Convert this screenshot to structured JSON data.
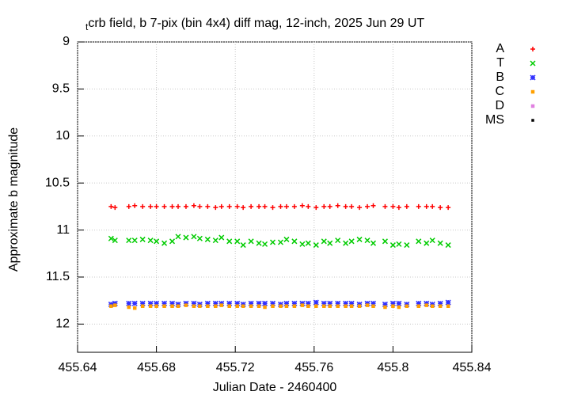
{
  "chart_data": {
    "type": "scatter",
    "title_sub": "t",
    "title": "crb field, b 7-pix (bin 4x4) diff mag, 12-inch, 2025 Jun 29 UT",
    "xlabel": "Julian Date - 2460400",
    "ylabel": "Approximate b magnitude",
    "xlim": [
      455.64,
      455.84
    ],
    "xticks": [
      455.64,
      455.68,
      455.72,
      455.76,
      455.8,
      455.84
    ],
    "ylim": [
      12.3,
      9
    ],
    "yticks": [
      9,
      9.5,
      10,
      10.5,
      11,
      11.5,
      12
    ],
    "grid": true,
    "legend": "right",
    "x": [
      455.657,
      455.659,
      455.666,
      455.669,
      455.673,
      455.677,
      455.68,
      455.684,
      455.688,
      455.691,
      455.695,
      455.699,
      455.702,
      455.706,
      455.71,
      455.713,
      455.717,
      455.721,
      455.724,
      455.728,
      455.732,
      455.735,
      455.739,
      455.743,
      455.746,
      455.75,
      455.754,
      455.757,
      455.761,
      455.765,
      455.768,
      455.772,
      455.776,
      455.779,
      455.783,
      455.787,
      455.79,
      455.796,
      455.8,
      455.803,
      455.807,
      455.813,
      455.817,
      455.82,
      455.824,
      455.828
    ],
    "series": [
      {
        "name": "A",
        "color": "#ff0000",
        "marker": "plus",
        "values": [
          10.75,
          10.76,
          10.75,
          10.74,
          10.75,
          10.75,
          10.75,
          10.75,
          10.75,
          10.75,
          10.75,
          10.74,
          10.75,
          10.75,
          10.76,
          10.75,
          10.75,
          10.75,
          10.76,
          10.75,
          10.75,
          10.75,
          10.76,
          10.75,
          10.75,
          10.75,
          10.74,
          10.75,
          10.76,
          10.75,
          10.75,
          10.74,
          10.75,
          10.75,
          10.76,
          10.75,
          10.74,
          10.75,
          10.75,
          10.76,
          10.75,
          10.75,
          10.75,
          10.75,
          10.76,
          10.76
        ]
      },
      {
        "name": "T",
        "color": "#00cc00",
        "marker": "cross",
        "values": [
          11.09,
          11.11,
          11.11,
          11.11,
          11.1,
          11.11,
          11.12,
          11.14,
          11.12,
          11.07,
          11.08,
          11.07,
          11.09,
          11.1,
          11.11,
          11.08,
          11.12,
          11.12,
          11.16,
          11.12,
          11.14,
          11.15,
          11.13,
          11.13,
          11.1,
          11.12,
          11.15,
          11.14,
          11.16,
          11.12,
          11.14,
          11.11,
          11.14,
          11.12,
          11.1,
          11.11,
          11.14,
          11.12,
          11.16,
          11.15,
          11.16,
          11.12,
          11.14,
          11.11,
          11.14,
          11.16
        ]
      },
      {
        "name": "B",
        "color": "#3030ff",
        "marker": "star",
        "values": [
          11.79,
          11.78,
          11.78,
          11.78,
          11.78,
          11.78,
          11.78,
          11.78,
          11.78,
          11.79,
          11.78,
          11.78,
          11.79,
          11.78,
          11.78,
          11.78,
          11.78,
          11.78,
          11.79,
          11.78,
          11.78,
          11.78,
          11.78,
          11.79,
          11.78,
          11.78,
          11.78,
          11.78,
          11.77,
          11.78,
          11.78,
          11.78,
          11.78,
          11.78,
          11.79,
          11.78,
          11.78,
          11.79,
          11.78,
          11.78,
          11.79,
          11.78,
          11.78,
          11.79,
          11.78,
          11.77
        ]
      },
      {
        "name": "C",
        "color": "#ffa000",
        "marker": "square",
        "values": [
          11.81,
          11.8,
          11.82,
          11.83,
          11.81,
          11.81,
          11.81,
          11.81,
          11.81,
          11.81,
          11.8,
          11.81,
          11.81,
          11.81,
          11.81,
          11.8,
          11.81,
          11.81,
          11.81,
          11.81,
          11.81,
          11.82,
          11.81,
          11.81,
          11.81,
          11.81,
          11.8,
          11.81,
          11.81,
          11.81,
          11.81,
          11.81,
          11.81,
          11.81,
          11.81,
          11.8,
          11.81,
          11.82,
          11.81,
          11.82,
          11.81,
          11.81,
          11.8,
          11.81,
          11.81,
          11.81
        ]
      },
      {
        "name": "D",
        "color": "#e080e0",
        "marker": "square",
        "values": []
      },
      {
        "name": "MS",
        "color": "#000000",
        "marker": "dot",
        "values": []
      }
    ]
  }
}
